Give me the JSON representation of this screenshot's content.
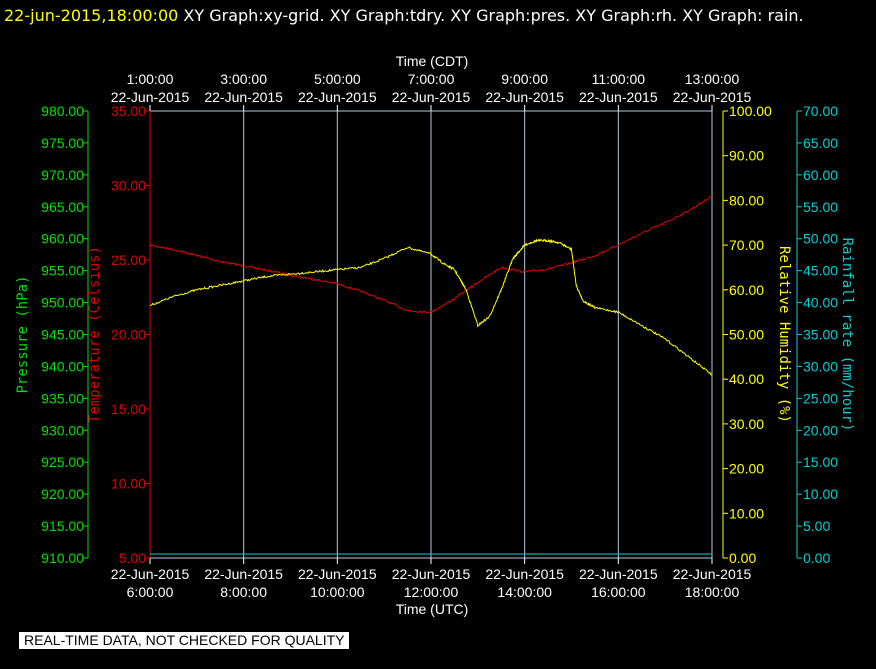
{
  "header": {
    "timestamp": "22-jun-2015,18:00:00",
    "titles": "XY Graph:xy-grid.  XY Graph:tdry.  XY Graph:pres.  XY Graph:rh.  XY Graph: rain."
  },
  "footer": {
    "disclaimer": "REAL-TIME DATA, NOT CHECKED FOR QUALITY"
  },
  "colors": {
    "pressure": "#00e000",
    "temperature": "#e00000",
    "humidity": "#ffff00",
    "rain": "#00d0d0",
    "grid": "#b0c8e0"
  },
  "chart_data": {
    "type": "line",
    "x_top_label": "Time (CDT)",
    "x_bottom_label": "Time (UTC)",
    "x_range_utc_hours": [
      6,
      18
    ],
    "top_ticks": [
      {
        "time": "1:00:00",
        "date": "22-Jun-2015"
      },
      {
        "time": "3:00:00",
        "date": "22-Jun-2015"
      },
      {
        "time": "5:00:00",
        "date": "22-Jun-2015"
      },
      {
        "time": "7:00:00",
        "date": "22-Jun-2015"
      },
      {
        "time": "9:00:00",
        "date": "22-Jun-2015"
      },
      {
        "time": "11:00:00",
        "date": "22-Jun-2015"
      },
      {
        "time": "13:00:00",
        "date": "22-Jun-2015"
      }
    ],
    "bottom_ticks": [
      {
        "date": "22-Jun-2015",
        "time": "6:00:00"
      },
      {
        "date": "22-Jun-2015",
        "time": "8:00:00"
      },
      {
        "date": "22-Jun-2015",
        "time": "10:00:00"
      },
      {
        "date": "22-Jun-2015",
        "time": "12:00:00"
      },
      {
        "date": "22-Jun-2015",
        "time": "14:00:00"
      },
      {
        "date": "22-Jun-2015",
        "time": "16:00:00"
      },
      {
        "date": "22-Jun-2015",
        "time": "18:00:00"
      }
    ],
    "axes": {
      "pressure": {
        "label": "Pressure (hPa)",
        "range": [
          910,
          980
        ],
        "ticks": [
          "910.00",
          "915.00",
          "920.00",
          "925.00",
          "930.00",
          "935.00",
          "940.00",
          "945.00",
          "950.00",
          "955.00",
          "960.00",
          "965.00",
          "970.00",
          "975.00",
          "980.00"
        ]
      },
      "temperature": {
        "label": "Temperature (Celsius)",
        "range": [
          5,
          35
        ],
        "ticks": [
          "5.00",
          "10.00",
          "15.00",
          "20.00",
          "25.00",
          "30.00",
          "35.00"
        ]
      },
      "humidity": {
        "label": "Relative Humidity (%)",
        "range": [
          0,
          100
        ],
        "ticks": [
          "0.00",
          "10.00",
          "20.00",
          "30.00",
          "40.00",
          "50.00",
          "60.00",
          "70.00",
          "80.00",
          "90.00",
          "100.00"
        ]
      },
      "rain": {
        "label": "Rainfall rate (mm/hour)",
        "range": [
          0,
          70
        ],
        "ticks": [
          "0.00",
          "5.00",
          "10.00",
          "15.00",
          "20.00",
          "25.00",
          "30.00",
          "35.00",
          "40.00",
          "45.00",
          "50.00",
          "55.00",
          "60.00",
          "65.00",
          "70.00"
        ]
      }
    },
    "series": [
      {
        "key": "temperature",
        "axis": "temperature",
        "x": [
          6,
          6.5,
          7,
          7.5,
          8,
          8.5,
          9,
          9.5,
          10,
          10.5,
          11,
          11.5,
          12,
          12.5,
          13,
          13.5,
          14,
          14.5,
          15,
          15.5,
          16,
          16.5,
          17,
          17.5,
          18
        ],
        "y": [
          26.0,
          25.7,
          25.3,
          24.9,
          24.6,
          24.3,
          24.0,
          23.7,
          23.4,
          22.9,
          22.3,
          21.6,
          21.5,
          22.4,
          23.5,
          24.5,
          24.2,
          24.4,
          24.8,
          25.3,
          26.0,
          26.8,
          27.5,
          28.3,
          29.3
        ]
      },
      {
        "key": "humidity",
        "axis": "humidity",
        "x": [
          6,
          6.5,
          7,
          7.5,
          8,
          8.5,
          9,
          9.5,
          10,
          10.5,
          11,
          11.5,
          12,
          12.25,
          12.5,
          12.75,
          13,
          13.25,
          13.5,
          13.75,
          14,
          14.25,
          14.5,
          14.75,
          15,
          15.1,
          15.25,
          15.5,
          16,
          16.5,
          17,
          17.5,
          18
        ],
        "y": [
          56.5,
          58.5,
          60.0,
          61.0,
          62.0,
          63.0,
          63.5,
          64.0,
          64.5,
          65.0,
          67.0,
          69.5,
          68.0,
          66.0,
          64.5,
          60.0,
          52.0,
          54.0,
          60.0,
          67.0,
          70.0,
          71.0,
          71.0,
          70.5,
          69.0,
          61.0,
          57.5,
          56.0,
          55.0,
          52.0,
          49.0,
          45.0,
          41.0
        ]
      },
      {
        "key": "rain",
        "axis": "rain",
        "x": [
          6,
          18
        ],
        "y": [
          0,
          0
        ]
      }
    ]
  }
}
